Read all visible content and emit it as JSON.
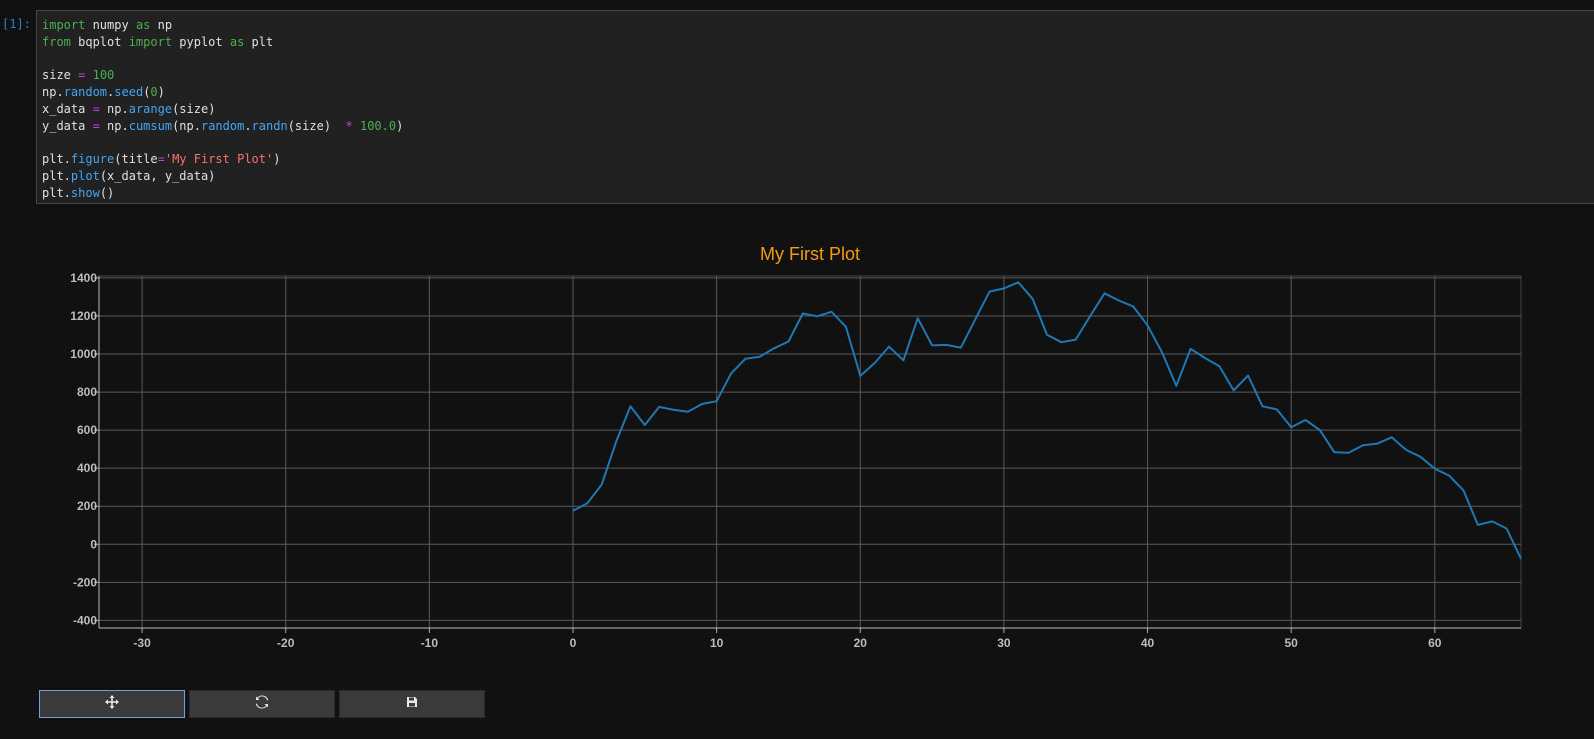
{
  "cell": {
    "prompt": "[1]:",
    "code_lines": [
      "import numpy as np",
      "from bqplot import pyplot as plt",
      "",
      "size = 100",
      "np.random.seed(0)",
      "x_data = np.arange(size)",
      "y_data = np.cumsum(np.random.randn(size)  * 100.0)",
      "",
      "plt.figure(title='My First Plot')",
      "plt.plot(x_data, y_data)",
      "plt.show()"
    ]
  },
  "toolbar": {
    "buttons": [
      {
        "icon": "move-icon",
        "glyph": "✥",
        "active": true
      },
      {
        "icon": "refresh-icon",
        "glyph": "⟳",
        "active": false
      },
      {
        "icon": "save-icon",
        "glyph": "💾",
        "active": false
      }
    ]
  },
  "colors": {
    "line": "#1f77b4",
    "title": "#f39c12",
    "grid": "#5a5a5a",
    "background": "#111111"
  },
  "chart_data": {
    "type": "line",
    "title": "My First Plot",
    "xlabel": "",
    "ylabel": "",
    "xlim": [
      -33,
      66
    ],
    "ylim": [
      -440,
      1410
    ],
    "xticks": [
      -30,
      -20,
      -10,
      0,
      10,
      20,
      30,
      40,
      50,
      60
    ],
    "yticks": [
      -400,
      -200,
      0,
      200,
      400,
      600,
      800,
      1000,
      1200,
      1400
    ],
    "grid": true,
    "series": [
      {
        "x": [
          0,
          1,
          2,
          3,
          4,
          5,
          6,
          7,
          8,
          9,
          10,
          11,
          12,
          13,
          14,
          15,
          16,
          17,
          18,
          19,
          20,
          21,
          22,
          23,
          24,
          25,
          26,
          27,
          28,
          29,
          30,
          31,
          32,
          33,
          34,
          35,
          36,
          37,
          38,
          39,
          40,
          41,
          42,
          43,
          44,
          45,
          46,
          47,
          48,
          49,
          50,
          51,
          52,
          53,
          54,
          55,
          56,
          57,
          58,
          59,
          60,
          61,
          62,
          63,
          64,
          65,
          66
        ],
        "values": [
          176,
          216,
          314,
          538,
          725,
          627,
          722,
          707,
          697,
          738,
          752,
          897,
          975,
          986,
          1030,
          1066,
          1213,
          1198,
          1222,
          1143,
          885,
          952,
          1039,
          967,
          1188,
          1045,
          1048,
          1033,
          1181,
          1328,
          1345,
          1377,
          1290,
          1101,
          1062,
          1076,
          1199,
          1319,
          1281,
          1250,
          1151,
          1010,
          833,
          1027,
          979,
          936,
          809,
          887,
          725,
          709,
          615,
          653,
          600,
          484,
          481,
          521,
          529,
          562,
          496,
          460,
          397,
          361,
          283,
          102,
          120,
          83,
          -76
        ]
      }
    ]
  }
}
